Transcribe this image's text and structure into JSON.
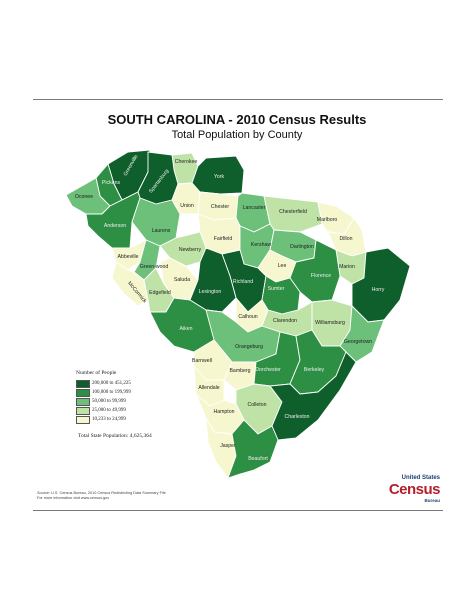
{
  "title": "SOUTH CAROLINA - 2010 Census Results",
  "subtitle": "Total Population by County",
  "legend": {
    "heading": "Number of People",
    "classes": [
      {
        "label": "200,000 to 451,225",
        "color": "#0e5f2b"
      },
      {
        "label": "100,000 to 199,999",
        "color": "#2d8f43"
      },
      {
        "label": "50,000 to 99,999",
        "color": "#6cc07a"
      },
      {
        "label": "25,000 to 49,999",
        "color": "#bfe3a6"
      },
      {
        "label": "10,233 to 24,999",
        "color": "#f7f7cf"
      }
    ]
  },
  "total_population": "Total State Population:   4,625,364",
  "source": "Source:  U.S. Census Bureau, 2010 Census Redistricting Data Summary File",
  "info": "For more information visit www.census.gov",
  "logo": {
    "top": "United States",
    "main": "Census",
    "bottom": "Bureau"
  },
  "counties": [
    {
      "name": "Greenville",
      "class": 0
    },
    {
      "name": "Cherokee",
      "class": 3
    },
    {
      "name": "Pickens",
      "class": 1
    },
    {
      "name": "Spartanburg",
      "class": 0
    },
    {
      "name": "York",
      "class": 0
    },
    {
      "name": "Oconee",
      "class": 2
    },
    {
      "name": "Union",
      "class": 4
    },
    {
      "name": "Chester",
      "class": 4
    },
    {
      "name": "Lancaster",
      "class": 2
    },
    {
      "name": "Chesterfield",
      "class": 3
    },
    {
      "name": "Marlboro",
      "class": 4
    },
    {
      "name": "Anderson",
      "class": 1
    },
    {
      "name": "Laurens",
      "class": 2
    },
    {
      "name": "Fairfield",
      "class": 4
    },
    {
      "name": "Kershaw",
      "class": 2
    },
    {
      "name": "Darlington",
      "class": 2
    },
    {
      "name": "Dillon",
      "class": 4
    },
    {
      "name": "Newberry",
      "class": 3
    },
    {
      "name": "Lee",
      "class": 4
    },
    {
      "name": "Abbeville",
      "class": 4
    },
    {
      "name": "Green-wood",
      "class": 2
    },
    {
      "name": "Marion",
      "class": 3
    },
    {
      "name": "Florence",
      "class": 1
    },
    {
      "name": "Saluda",
      "class": 4
    },
    {
      "name": "Richland",
      "class": 0
    },
    {
      "name": "Horry",
      "class": 0
    },
    {
      "name": "McCormick",
      "class": 4
    },
    {
      "name": "Lexington",
      "class": 0
    },
    {
      "name": "Sumter",
      "class": 1
    },
    {
      "name": "Edgefield",
      "class": 3
    },
    {
      "name": "Calhoun",
      "class": 4
    },
    {
      "name": "Clarendon",
      "class": 3
    },
    {
      "name": "Williamsburg",
      "class": 3
    },
    {
      "name": "Aiken",
      "class": 1
    },
    {
      "name": "Georgetown",
      "class": 2
    },
    {
      "name": "Orangeburg",
      "class": 2
    },
    {
      "name": "Barnwell",
      "class": 4
    },
    {
      "name": "Bamberg",
      "class": 4
    },
    {
      "name": "Dorchester",
      "class": 1
    },
    {
      "name": "Berkeley",
      "class": 1
    },
    {
      "name": "Allendale",
      "class": 4
    },
    {
      "name": "Colleton",
      "class": 3
    },
    {
      "name": "Hampton",
      "class": 4
    },
    {
      "name": "Charleston",
      "class": 0
    },
    {
      "name": "Jasper",
      "class": 4
    },
    {
      "name": "Beaufort",
      "class": 1
    }
  ]
}
